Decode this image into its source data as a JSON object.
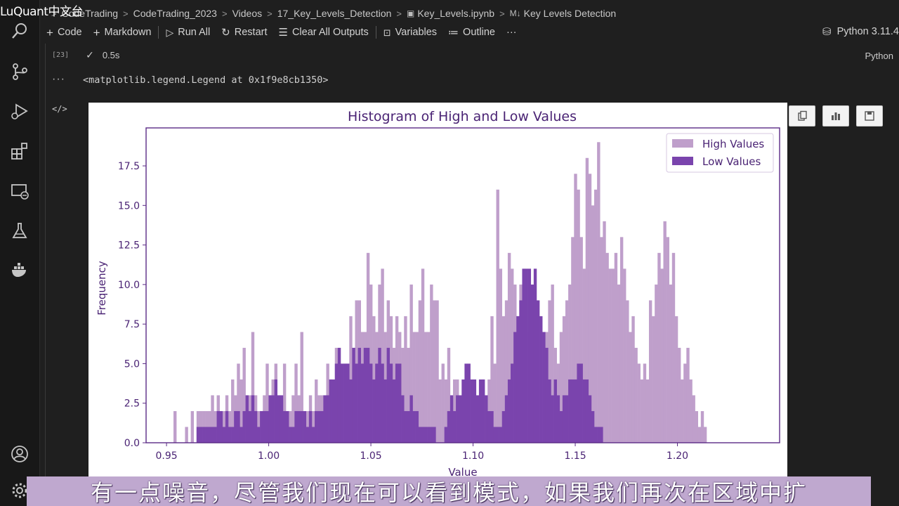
{
  "watermark": "LuQuant中文台",
  "breadcrumb": {
    "items": [
      "CodeTrading",
      "CodeTrading_2023",
      "Videos",
      "17_Key_Levels_Detection",
      "Key_Levels.ipynb",
      "Key Levels Detection"
    ],
    "separator": ">"
  },
  "toolbar": {
    "code": "Code",
    "markdown": "Markdown",
    "run_all": "Run All",
    "restart": "Restart",
    "clear_outputs": "Clear All Outputs",
    "variables": "Variables",
    "outline": "Outline",
    "more": "···"
  },
  "kernel": {
    "label": "Python 3.11.4"
  },
  "cell": {
    "exec_count": "[23]",
    "duration": "0.5s",
    "language": "Python",
    "output_dots": "···",
    "output_text": "<matplotlib.legend.Legend at 0x1f9e8cb1350>",
    "output_icon": "</>"
  },
  "colors": {
    "high": "#bf9fcb",
    "low": "#7a44ad",
    "axis": "#5a2a86",
    "subtitle_bg": "#bfa8cf"
  },
  "chart_data": {
    "type": "histogram",
    "title": "Histogram of High and Low Values",
    "xlabel": "Value",
    "ylabel": "Frequency",
    "xlim": [
      0.94,
      1.25
    ],
    "ylim": [
      0,
      19.9
    ],
    "xticks": [
      "0.95",
      "1.00",
      "1.05",
      "1.10",
      "1.15",
      "1.20"
    ],
    "yticks": [
      "0.0",
      "2.5",
      "5.0",
      "7.5",
      "10.0",
      "12.5",
      "15.0",
      "17.5"
    ],
    "legend": {
      "position": "top-right",
      "entries": [
        "High Values",
        "Low Values"
      ]
    },
    "grid": false,
    "bin_start": 0.952,
    "bin_width": 0.00141,
    "series": [
      {
        "name": "High Values",
        "values": [
          0,
          2,
          0,
          0,
          0,
          1,
          0,
          2,
          0,
          2,
          2,
          2,
          2,
          2,
          3,
          2,
          3,
          2,
          2,
          3,
          2,
          4,
          3,
          5,
          4,
          6,
          3,
          3,
          7,
          3,
          2,
          2,
          3,
          5,
          3,
          4,
          5,
          3,
          2,
          5,
          2,
          2,
          3,
          5,
          3,
          7,
          2,
          2,
          3,
          2,
          4,
          3,
          3,
          2,
          5,
          4,
          3,
          6,
          4,
          4,
          5,
          5,
          8,
          6,
          9,
          9,
          7,
          7,
          12,
          10,
          8,
          7,
          10,
          11,
          7,
          9,
          8,
          6,
          8,
          7,
          6,
          8,
          6,
          10,
          7,
          7,
          9,
          11,
          7,
          7,
          10,
          9,
          9,
          4,
          5,
          4,
          6,
          3,
          4,
          4,
          2,
          3,
          2,
          2,
          3,
          1,
          1,
          0,
          0,
          3,
          4,
          8,
          5,
          16,
          11,
          8,
          9,
          12,
          11,
          10,
          8,
          10,
          9,
          7,
          6,
          4,
          5,
          3,
          3,
          4,
          7,
          9,
          10,
          6,
          5,
          7,
          8,
          9,
          10,
          13,
          17,
          16,
          13,
          11,
          18,
          17,
          15,
          16,
          19,
          13,
          14,
          12,
          11,
          11,
          12,
          10,
          13,
          11,
          9,
          7,
          8,
          6,
          5,
          4,
          5,
          4,
          9,
          8,
          10,
          12,
          11,
          14,
          13,
          10,
          12,
          8,
          6,
          4,
          5,
          6,
          4,
          3,
          2,
          1,
          2,
          1
        ]
      },
      {
        "name": "Low Values",
        "values": [
          0,
          0,
          0,
          0,
          0,
          0,
          0,
          0,
          0,
          1,
          1,
          1,
          1,
          1,
          1,
          1,
          2,
          2,
          1,
          2,
          1,
          1,
          2,
          2,
          1,
          2,
          3,
          2,
          3,
          2,
          1,
          2,
          2,
          2,
          3,
          3,
          4,
          3,
          3,
          2,
          2,
          1,
          1,
          2,
          2,
          2,
          2,
          1,
          2,
          1,
          2,
          2,
          2,
          3,
          3,
          4,
          4,
          5,
          6,
          5,
          5,
          5,
          4,
          6,
          5,
          6,
          5,
          6,
          6,
          5,
          4,
          5,
          6,
          5,
          4,
          6,
          5,
          4,
          5,
          5,
          3,
          2,
          2,
          3,
          2,
          2,
          1,
          1,
          1,
          1,
          1,
          1,
          0,
          0,
          0,
          1,
          2,
          3,
          2,
          3,
          3,
          4,
          5,
          5,
          4,
          4,
          3,
          4,
          4,
          3,
          2,
          2,
          1,
          1,
          1,
          2,
          3,
          4,
          5,
          7,
          8,
          9,
          11,
          11,
          11,
          10,
          11,
          9,
          8,
          7,
          6,
          4,
          3,
          4,
          3,
          2,
          3,
          3,
          4,
          4,
          4,
          5,
          5,
          4,
          4,
          3,
          2,
          1,
          1,
          1,
          0,
          0,
          0,
          0,
          0,
          0,
          0,
          0,
          0,
          0,
          0,
          0,
          0,
          0,
          0,
          0,
          0,
          0,
          0,
          0,
          0,
          0,
          0,
          0,
          0,
          0,
          0,
          0,
          0,
          0,
          0,
          0,
          0,
          0,
          0,
          0,
          0,
          0,
          0,
          0
        ]
      }
    ]
  },
  "subtitle": "有一点噪音，尽管我们现在可以看到模式，如果我们再次在区域中扩"
}
